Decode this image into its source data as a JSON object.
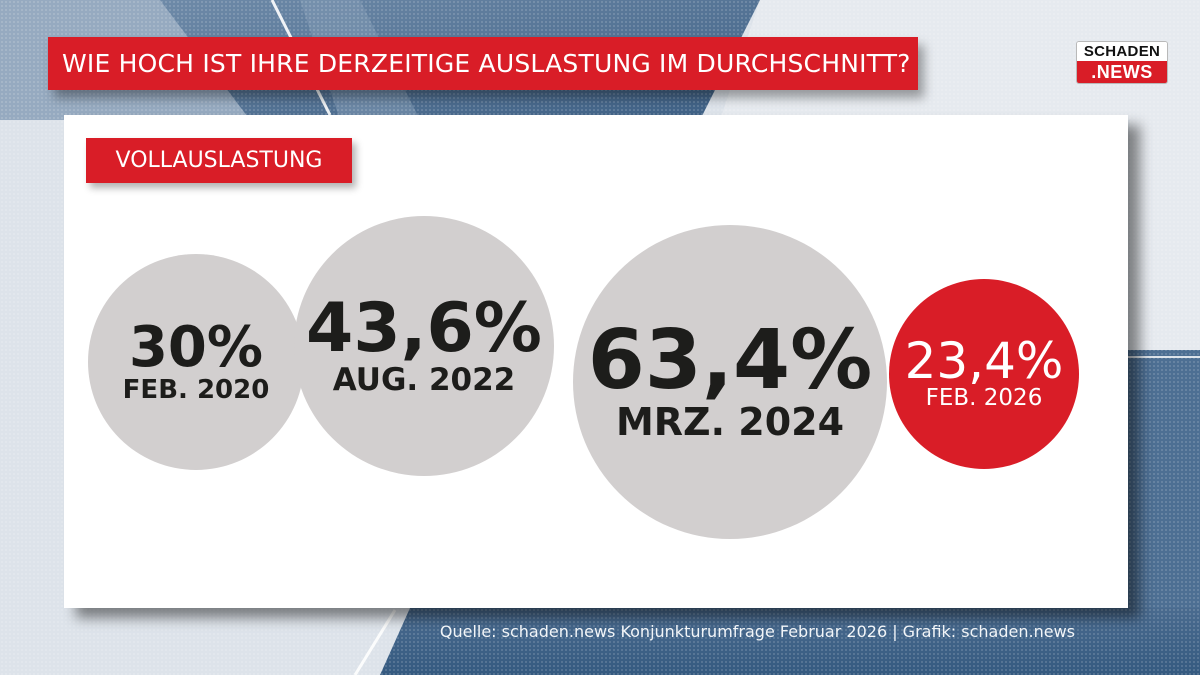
{
  "header": {
    "title": "WIE HOCH IST IHRE DERZEITIGE AUSLASTUNG IM DURCHSCHNITT?",
    "logo_top": "SCHADEN",
    "logo_bottom": ".NEWS"
  },
  "colors": {
    "accent_red": "#d91d27",
    "bubble_grey": "#d2cfcf",
    "text_dark": "#1d1d1b",
    "bg_blue": "#3e6185"
  },
  "footer": {
    "source": "Quelle: schaden.news Konjunkturumfrage Februar 2026 | Grafik: schaden.news"
  },
  "chart_data": {
    "type": "bubble",
    "title": "WIE HOCH IST IHRE DERZEITIGE AUSLASTUNG IM DURCHSCHNITT?",
    "subtitle": "VOLLAUSLASTUNG",
    "unit": "%",
    "categories": [
      "FEB. 2020",
      "AUG. 2022",
      "MRZ. 2024",
      "FEB. 2026"
    ],
    "values": [
      30,
      43.6,
      63.4,
      23.4
    ],
    "labels": [
      "30%",
      "43,6%",
      "63,4%",
      "23,4%"
    ],
    "highlight": [
      false,
      false,
      false,
      true
    ],
    "legend": "none",
    "source": "Quelle: schaden.news Konjunkturumfrage Februar 2026 | Grafik: schaden.news"
  }
}
